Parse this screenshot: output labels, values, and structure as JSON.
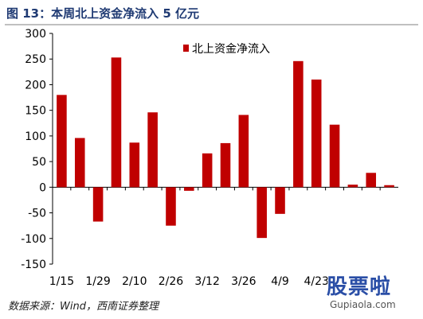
{
  "title": "图 13：本周北上资金净流入 5 亿元",
  "source": "数据来源：Wind，西南证券整理",
  "watermark": {
    "brand": "股票啦",
    "url": "Gupiaola.com"
  },
  "colors": {
    "bar": "#c00000",
    "title": "#1f3a73"
  },
  "chart_data": {
    "type": "bar",
    "legend_position": "top-right",
    "series": [
      {
        "name": "北上资金净流入",
        "values": [
          180,
          96,
          -67,
          253,
          87,
          146,
          -75,
          -7,
          66,
          86,
          141,
          -99,
          -52,
          246,
          210,
          122,
          5,
          28,
          4
        ]
      }
    ],
    "categories": [
      "1/15",
      "",
      "1/29",
      "",
      "2/10",
      "",
      "2/26",
      "",
      "3/12",
      "",
      "3/26",
      "",
      "4/9",
      "",
      "4/23",
      "",
      "",
      "",
      ""
    ],
    "x_tick_labels": [
      "1/15",
      "1/29",
      "2/10",
      "2/26",
      "3/12",
      "3/26",
      "4/9",
      "4/23"
    ],
    "ylim": [
      -150,
      300
    ],
    "yticks": [
      -150,
      -100,
      -50,
      0,
      50,
      100,
      150,
      200,
      250,
      300
    ],
    "grid": false
  }
}
